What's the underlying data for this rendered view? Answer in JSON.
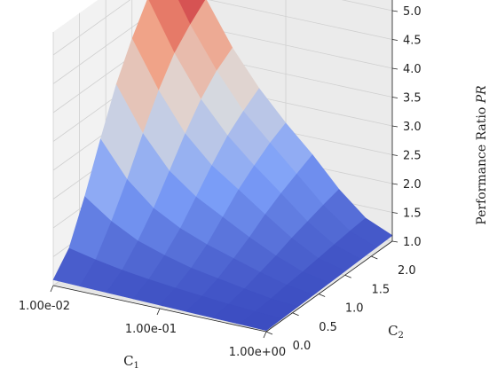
{
  "chart_data": {
    "type": "surface",
    "title": "",
    "xlabel": "C",
    "xlabel_sub": "1",
    "ylabel": "C",
    "ylabel_sub": "2",
    "zlabel": "Performance Ratio ",
    "zlabel_var": "PR",
    "x_scale": "log",
    "x_ticks": [
      "1.00e-02",
      "1.00e-01",
      "1.00e+00"
    ],
    "y_ticks": [
      "0.0",
      "0.5",
      "1.0",
      "1.5",
      "2.0"
    ],
    "z_ticks": [
      "1.0",
      "1.5",
      "2.0",
      "2.5",
      "3.0",
      "3.5",
      "4.0",
      "4.5",
      "5.0"
    ],
    "zlim": [
      1.0,
      5.4
    ],
    "colormap": "coolwarm",
    "grid": true,
    "x": [
      0.01,
      0.0178,
      0.0316,
      0.0562,
      0.1,
      0.178,
      0.316,
      0.562,
      1.0
    ],
    "y": [
      0.0,
      0.3,
      0.6,
      0.9,
      1.2,
      1.5,
      1.8,
      2.1,
      2.4
    ],
    "z": [
      [
        1.1,
        1.09,
        1.08,
        1.07,
        1.06,
        1.05,
        1.04,
        1.03,
        1.02
      ],
      [
        1.45,
        1.35,
        1.27,
        1.21,
        1.16,
        1.12,
        1.08,
        1.05,
        1.03
      ],
      [
        2.15,
        1.82,
        1.58,
        1.43,
        1.31,
        1.23,
        1.15,
        1.08,
        1.04
      ],
      [
        2.95,
        2.35,
        1.95,
        1.7,
        1.52,
        1.38,
        1.24,
        1.12,
        1.05
      ],
      [
        3.7,
        2.95,
        2.4,
        2.05,
        1.8,
        1.55,
        1.33,
        1.15,
        1.06
      ],
      [
        4.3,
        3.5,
        2.85,
        2.4,
        2.08,
        1.75,
        1.44,
        1.19,
        1.07
      ],
      [
        4.8,
        3.95,
        3.25,
        2.72,
        2.3,
        1.92,
        1.53,
        1.23,
        1.08
      ],
      [
        5.1,
        4.25,
        3.55,
        2.95,
        2.5,
        2.06,
        1.62,
        1.27,
        1.09
      ],
      [
        5.4,
        4.5,
        3.75,
        3.15,
        2.65,
        2.2,
        1.7,
        1.3,
        1.1
      ]
    ]
  }
}
